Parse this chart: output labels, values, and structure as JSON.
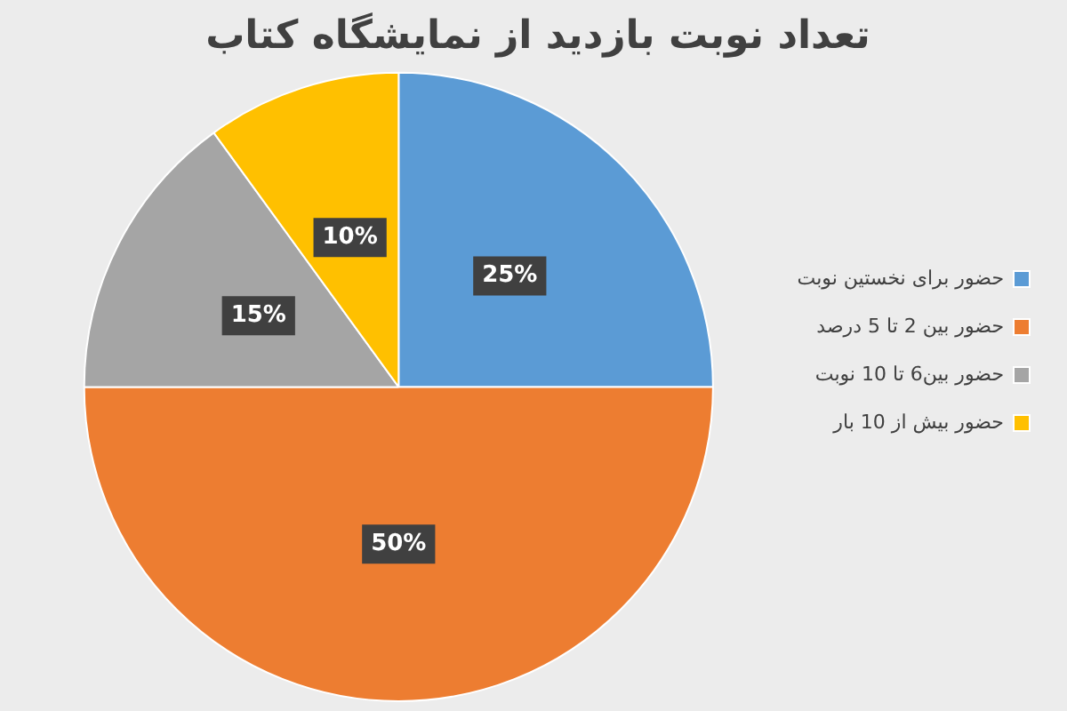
{
  "chart_data": {
    "type": "pie",
    "title": "تعداد نوبت بازدید از نمایشگاه کتاب",
    "categories": [
      "حضور برای نخستین نوبت",
      "حضور بین 2 تا 5 درصد",
      "حضور بین6 تا 10 نوبت",
      "حضور بیش از 10 بار"
    ],
    "values": [
      25,
      50,
      15,
      10
    ],
    "colors": [
      "#5b9bd5",
      "#ed7d31",
      "#a5a5a5",
      "#ffc000"
    ],
    "value_labels": [
      "25%",
      "50%",
      "15%",
      "10%"
    ],
    "legend": "right"
  }
}
